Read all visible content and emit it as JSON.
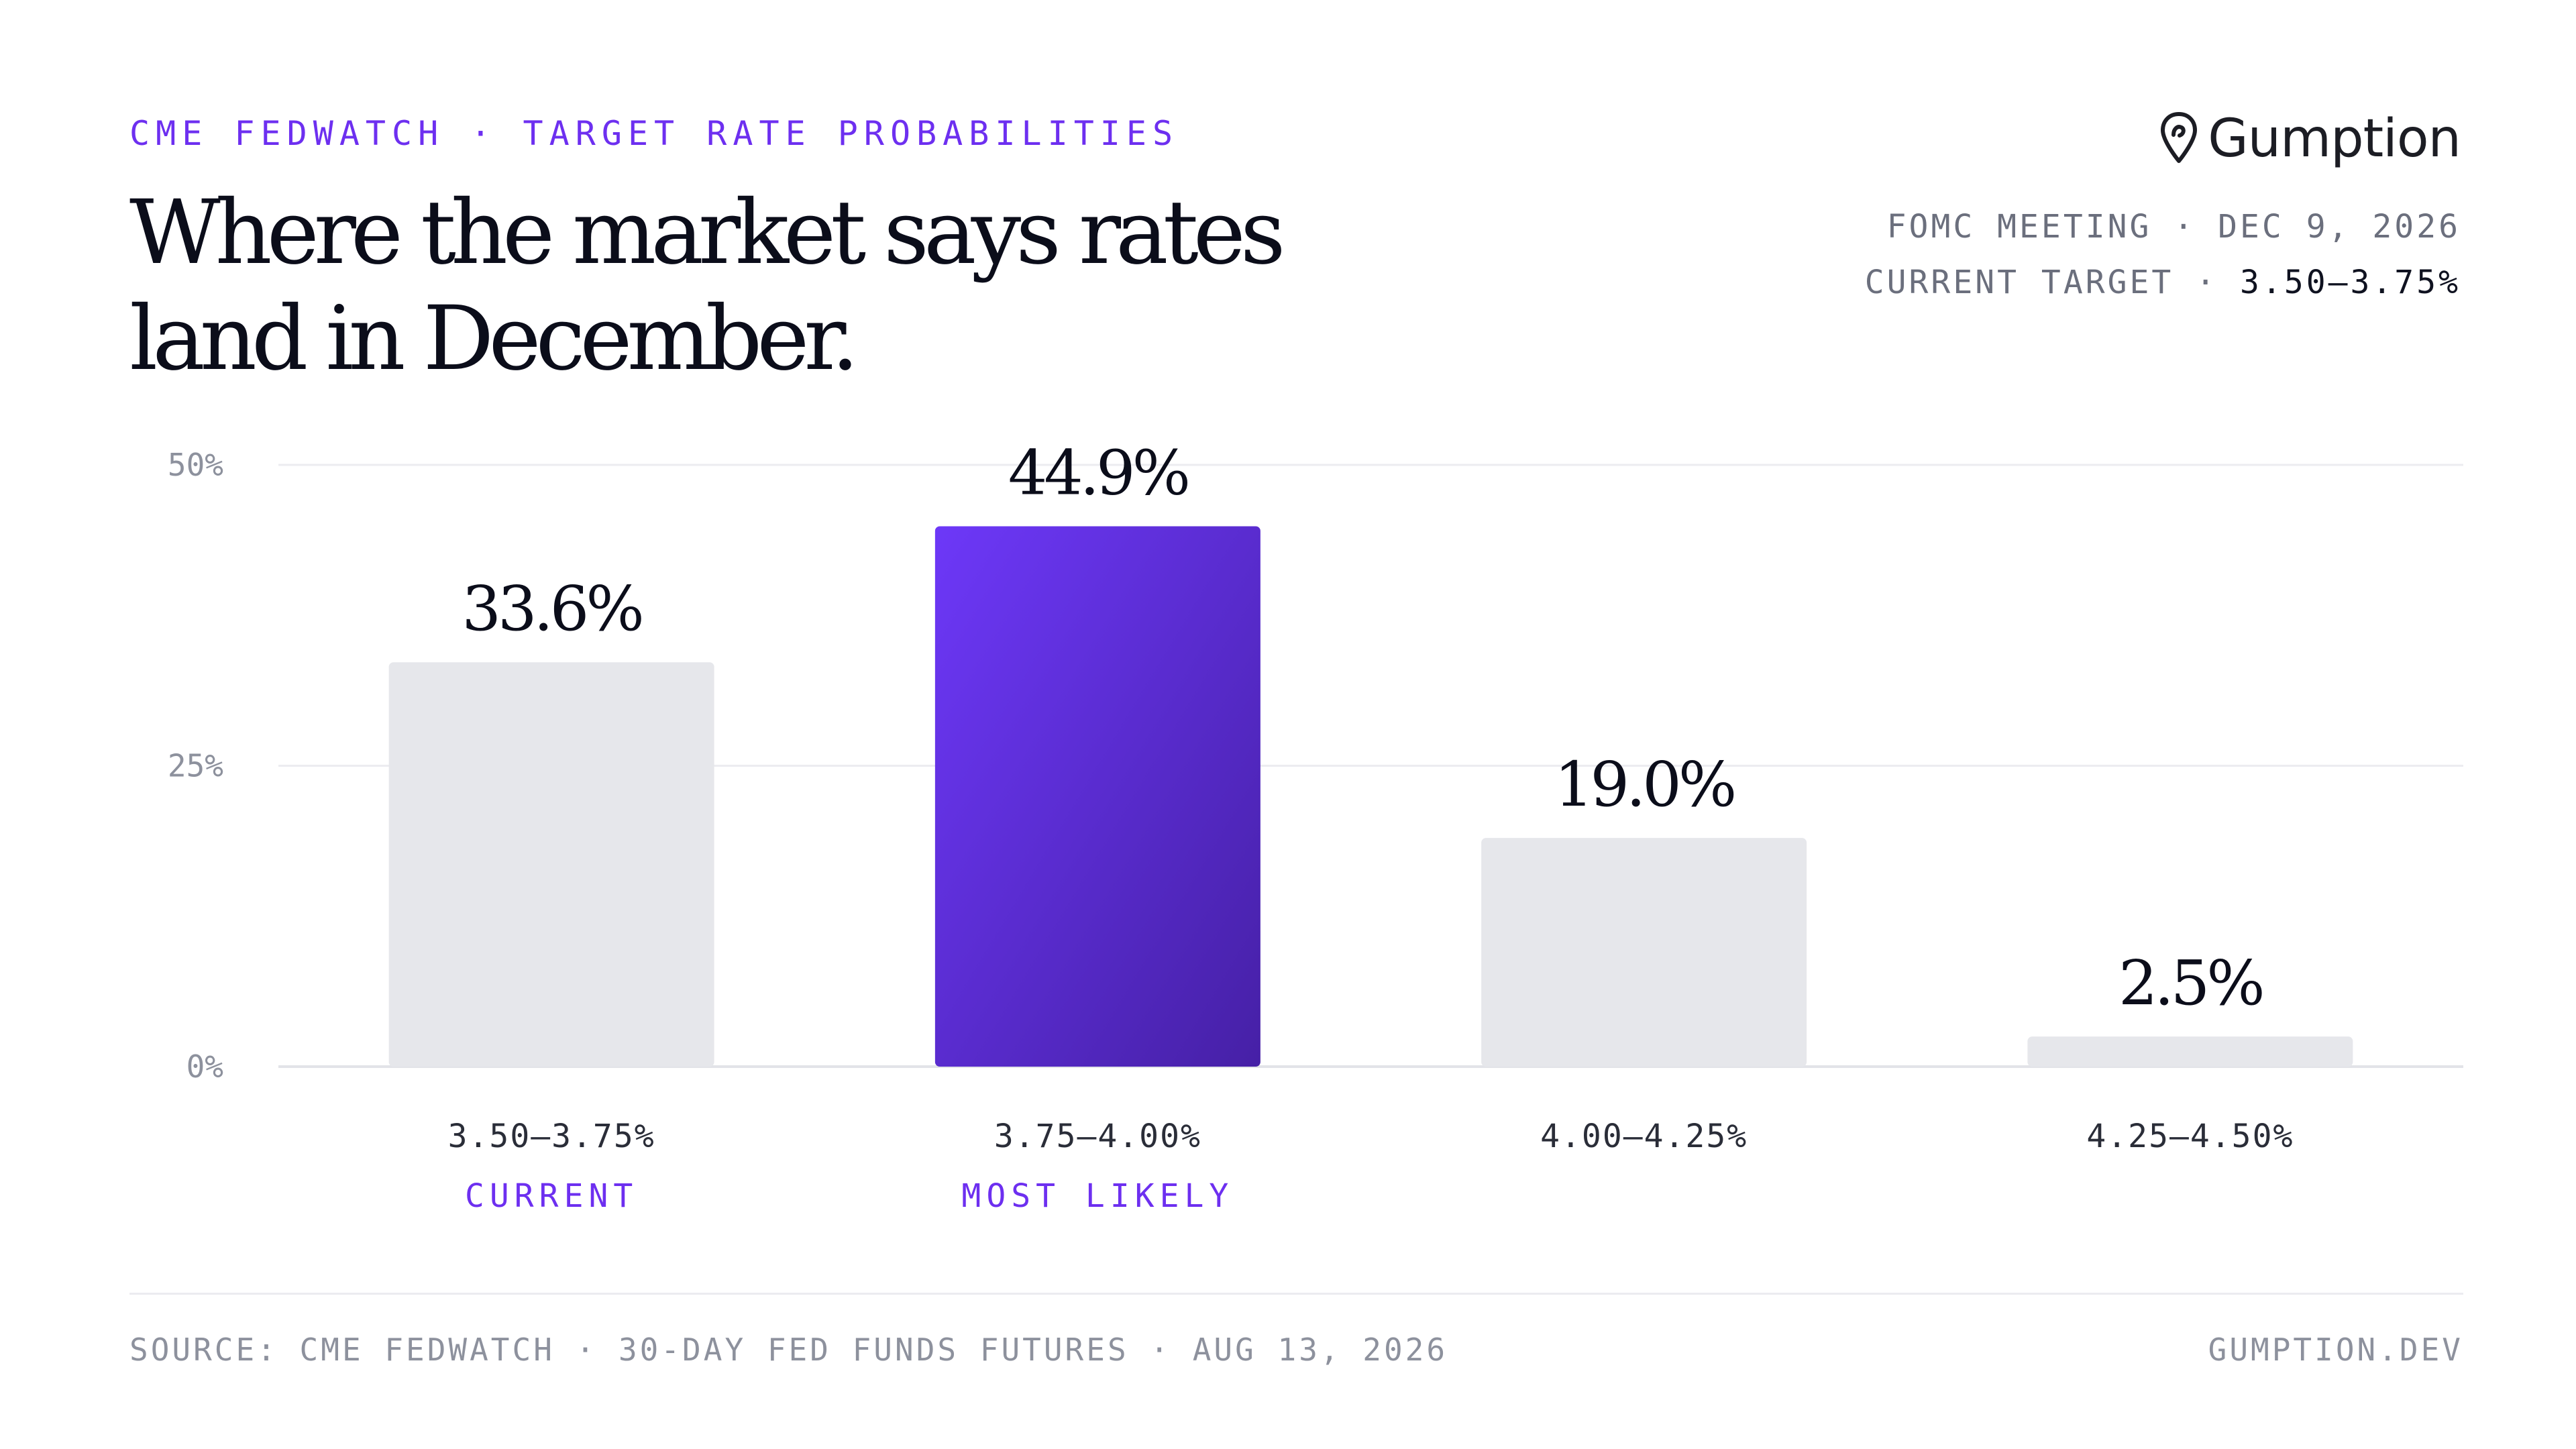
{
  "header": {
    "eyebrow": "CME FEDWATCH · TARGET RATE PROBABILITIES",
    "title_line1": "Where the market says rates",
    "title_line2": "land in December.",
    "brand_name": "Gumption",
    "meeting_label": "FOMC MEETING · DEC 9, 2026",
    "current_target_label": "CURRENT TARGET ·",
    "current_target_value": "3.50–3.75%"
  },
  "colors": {
    "accent": "#6d2ff0",
    "accent_dark": "#4620a6",
    "bar_neutral": "#e6e7eb",
    "grid": "#ececf0",
    "axis_text": "#8d919d"
  },
  "chart_data": {
    "type": "bar",
    "categories": [
      "3.50–3.75%",
      "3.75–4.00%",
      "4.00–4.25%",
      "4.25–4.50%"
    ],
    "values": [
      33.6,
      44.9,
      19.0,
      2.5
    ],
    "value_labels": [
      "33.6%",
      "44.9%",
      "19.0%",
      "2.5%"
    ],
    "sublabels": [
      "CURRENT",
      "MOST LIKELY",
      "",
      ""
    ],
    "highlight_index": 1,
    "ylim": [
      0,
      50
    ],
    "yticks": [
      0,
      25,
      50
    ],
    "ytick_labels": [
      "0%",
      "25%",
      "50%"
    ],
    "grid": true
  },
  "footer": {
    "source": "SOURCE: CME FEDWATCH · 30-DAY FED FUNDS FUTURES · AUG 13, 2026",
    "site": "GUMPTION.DEV"
  }
}
